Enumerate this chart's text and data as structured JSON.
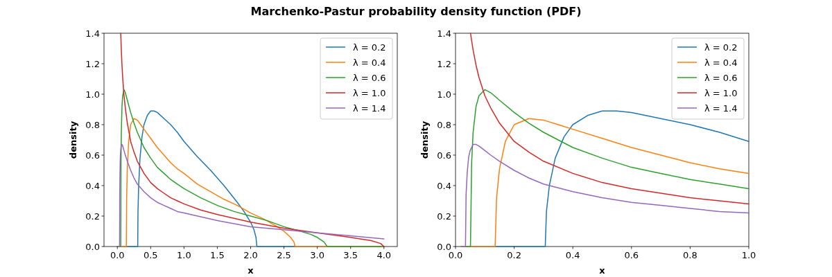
{
  "chart_data": [
    {
      "type": "line",
      "title": "Marchenko-Pastur probability density function (PDF)",
      "xlabel": "x",
      "ylabel": "density",
      "legend": "top right",
      "xlim": [
        -0.2,
        4.2
      ],
      "xticks": [
        {
          "value": 0,
          "label": "0.0"
        },
        {
          "value": 0.5,
          "label": "0.5"
        },
        {
          "value": 1,
          "label": "1.0"
        },
        {
          "value": 1.5,
          "label": "1.5"
        },
        {
          "value": 2,
          "label": "2.0"
        },
        {
          "value": 2.5,
          "label": "2.5"
        },
        {
          "value": 3,
          "label": "3.0"
        },
        {
          "value": 3.5,
          "label": "3.5"
        },
        {
          "value": 4,
          "label": "4.0"
        }
      ],
      "ylim": [
        0,
        1.4
      ],
      "yticks": [
        {
          "value": 0,
          "label": "0.0"
        },
        {
          "value": 0.2,
          "label": "0.2"
        },
        {
          "value": 0.4,
          "label": "0.4"
        },
        {
          "value": 0.6,
          "label": "0.6"
        },
        {
          "value": 0.8,
          "label": "0.8"
        },
        {
          "value": 1,
          "label": "1.0"
        },
        {
          "value": 1.2,
          "label": "1.2"
        },
        {
          "value": 1.4,
          "label": "1.4"
        }
      ],
      "series": [
        {
          "name": "λ = 0.2",
          "color": "#1f77b4",
          "x": [
            0,
            0.306,
            0.31,
            0.32,
            0.34,
            0.37,
            0.4,
            0.45,
            0.5,
            0.55,
            0.6,
            0.7,
            0.8,
            0.9,
            1.0,
            1.2,
            1.4,
            1.6,
            1.8,
            1.9,
            2.0,
            2.05,
            2.08,
            2.094,
            4.0
          ],
          "values": [
            0,
            0,
            0.23,
            0.4,
            0.58,
            0.72,
            0.8,
            0.86,
            0.89,
            0.89,
            0.88,
            0.84,
            0.8,
            0.75,
            0.69,
            0.59,
            0.5,
            0.4,
            0.29,
            0.23,
            0.16,
            0.11,
            0.06,
            0,
            0
          ]
        },
        {
          "name": "λ = 0.4",
          "color": "#ff7f0e",
          "x": [
            0,
            0.135,
            0.14,
            0.15,
            0.17,
            0.2,
            0.25,
            0.3,
            0.35,
            0.4,
            0.5,
            0.6,
            0.7,
            0.8,
            0.9,
            1.0,
            1.2,
            1.4,
            1.6,
            1.8,
            2.0,
            2.2,
            2.4,
            2.5,
            2.6,
            2.65,
            2.665,
            4.0
          ],
          "values": [
            0,
            0,
            0.32,
            0.51,
            0.69,
            0.8,
            0.84,
            0.83,
            0.8,
            0.77,
            0.71,
            0.65,
            0.6,
            0.55,
            0.51,
            0.48,
            0.41,
            0.36,
            0.31,
            0.27,
            0.22,
            0.18,
            0.13,
            0.1,
            0.06,
            0.03,
            0,
            0
          ]
        },
        {
          "name": "λ = 0.6",
          "color": "#2ca02c",
          "x": [
            0,
            0.051,
            0.055,
            0.06,
            0.07,
            0.08,
            0.1,
            0.12,
            0.15,
            0.2,
            0.25,
            0.3,
            0.4,
            0.5,
            0.6,
            0.7,
            0.8,
            0.9,
            1.0,
            1.25,
            1.5,
            1.75,
            2.0,
            2.25,
            2.5,
            2.75,
            2.9,
            3.0,
            3.1,
            3.149,
            4.0
          ],
          "values": [
            0,
            0,
            0.55,
            0.75,
            0.92,
            0.99,
            1.03,
            1.01,
            0.96,
            0.88,
            0.81,
            0.75,
            0.65,
            0.58,
            0.52,
            0.48,
            0.44,
            0.41,
            0.38,
            0.32,
            0.27,
            0.23,
            0.2,
            0.17,
            0.13,
            0.1,
            0.08,
            0.06,
            0.03,
            0,
            0
          ]
        },
        {
          "name": "λ = 1.0",
          "color": "#d62728",
          "x": [
            0.051,
            0.06,
            0.07,
            0.08,
            0.1,
            0.12,
            0.15,
            0.2,
            0.25,
            0.3,
            0.4,
            0.5,
            0.6,
            0.7,
            0.8,
            0.9,
            1.0,
            1.25,
            1.5,
            2.0,
            2.5,
            3.0,
            3.5,
            3.8,
            3.95,
            4.0
          ],
          "values": [
            1.4,
            1.29,
            1.19,
            1.11,
            0.99,
            0.91,
            0.81,
            0.69,
            0.62,
            0.56,
            0.48,
            0.42,
            0.38,
            0.35,
            0.32,
            0.3,
            0.28,
            0.24,
            0.21,
            0.16,
            0.12,
            0.09,
            0.06,
            0.04,
            0.02,
            0
          ]
        },
        {
          "name": "λ = 1.4",
          "color": "#9467bd",
          "x": [
            0,
            0.034,
            0.036,
            0.04,
            0.045,
            0.05,
            0.06,
            0.07,
            0.08,
            0.1,
            0.12,
            0.15,
            0.2,
            0.25,
            0.3,
            0.4,
            0.5,
            0.6,
            0.7,
            0.8,
            0.9,
            1.0,
            1.5,
            2.0,
            2.5,
            3.0,
            3.5,
            4.0
          ],
          "values": [
            0,
            0,
            0.34,
            0.49,
            0.59,
            0.63,
            0.67,
            0.67,
            0.66,
            0.63,
            0.6,
            0.56,
            0.5,
            0.45,
            0.41,
            0.36,
            0.32,
            0.29,
            0.27,
            0.25,
            0.23,
            0.22,
            0.17,
            0.13,
            0.11,
            0.09,
            0.07,
            0.05
          ]
        }
      ]
    },
    {
      "type": "line",
      "xlabel": "x",
      "ylabel": "density",
      "legend": "top right",
      "xlim": [
        0,
        1
      ],
      "xticks": [
        {
          "value": 0,
          "label": "0.0"
        },
        {
          "value": 0.2,
          "label": "0.2"
        },
        {
          "value": 0.4,
          "label": "0.4"
        },
        {
          "value": 0.6,
          "label": "0.6"
        },
        {
          "value": 0.8,
          "label": "0.8"
        },
        {
          "value": 1,
          "label": "1.0"
        }
      ],
      "ylim": [
        0,
        1.4
      ],
      "yticks": [
        {
          "value": 0,
          "label": "0.0"
        },
        {
          "value": 0.2,
          "label": "0.2"
        },
        {
          "value": 0.4,
          "label": "0.4"
        },
        {
          "value": 0.6,
          "label": "0.6"
        },
        {
          "value": 0.8,
          "label": "0.8"
        },
        {
          "value": 1,
          "label": "1.0"
        },
        {
          "value": 1.2,
          "label": "1.2"
        },
        {
          "value": 1.4,
          "label": "1.4"
        }
      ],
      "series": [
        {
          "name": "λ = 0.2",
          "color": "#1f77b4",
          "x": [
            0.02,
            0.306,
            0.31,
            0.32,
            0.34,
            0.37,
            0.4,
            0.45,
            0.5,
            0.55,
            0.6,
            0.7,
            0.8,
            0.9,
            1.0
          ],
          "values": [
            0,
            0,
            0.23,
            0.4,
            0.58,
            0.72,
            0.8,
            0.86,
            0.89,
            0.89,
            0.88,
            0.84,
            0.8,
            0.75,
            0.69
          ]
        },
        {
          "name": "λ = 0.4",
          "color": "#ff7f0e",
          "x": [
            0.02,
            0.135,
            0.14,
            0.15,
            0.17,
            0.2,
            0.25,
            0.3,
            0.35,
            0.4,
            0.5,
            0.6,
            0.7,
            0.8,
            0.9,
            1.0
          ],
          "values": [
            0,
            0,
            0.32,
            0.51,
            0.69,
            0.8,
            0.84,
            0.83,
            0.8,
            0.77,
            0.71,
            0.65,
            0.6,
            0.55,
            0.51,
            0.48
          ]
        },
        {
          "name": "λ = 0.6",
          "color": "#2ca02c",
          "x": [
            0.02,
            0.051,
            0.055,
            0.06,
            0.07,
            0.08,
            0.1,
            0.12,
            0.15,
            0.2,
            0.25,
            0.3,
            0.4,
            0.5,
            0.6,
            0.7,
            0.8,
            0.9,
            1.0
          ],
          "values": [
            0,
            0,
            0.55,
            0.75,
            0.92,
            0.99,
            1.03,
            1.01,
            0.96,
            0.88,
            0.81,
            0.75,
            0.65,
            0.58,
            0.52,
            0.48,
            0.44,
            0.41,
            0.38
          ]
        },
        {
          "name": "λ = 1.0",
          "color": "#d62728",
          "x": [
            0.051,
            0.06,
            0.07,
            0.08,
            0.1,
            0.12,
            0.15,
            0.2,
            0.25,
            0.3,
            0.4,
            0.5,
            0.6,
            0.7,
            0.8,
            0.9,
            1.0
          ],
          "values": [
            1.4,
            1.29,
            1.19,
            1.11,
            0.99,
            0.91,
            0.81,
            0.69,
            0.62,
            0.56,
            0.48,
            0.42,
            0.38,
            0.35,
            0.32,
            0.3,
            0.28
          ]
        },
        {
          "name": "λ = 1.4",
          "color": "#9467bd",
          "x": [
            0.02,
            0.034,
            0.036,
            0.04,
            0.045,
            0.05,
            0.06,
            0.07,
            0.08,
            0.1,
            0.12,
            0.15,
            0.2,
            0.25,
            0.3,
            0.4,
            0.5,
            0.6,
            0.7,
            0.8,
            0.9,
            1.0
          ],
          "values": [
            0,
            0,
            0.34,
            0.49,
            0.59,
            0.63,
            0.67,
            0.67,
            0.66,
            0.63,
            0.6,
            0.56,
            0.5,
            0.45,
            0.41,
            0.36,
            0.32,
            0.29,
            0.27,
            0.25,
            0.23,
            0.22
          ]
        }
      ]
    }
  ]
}
